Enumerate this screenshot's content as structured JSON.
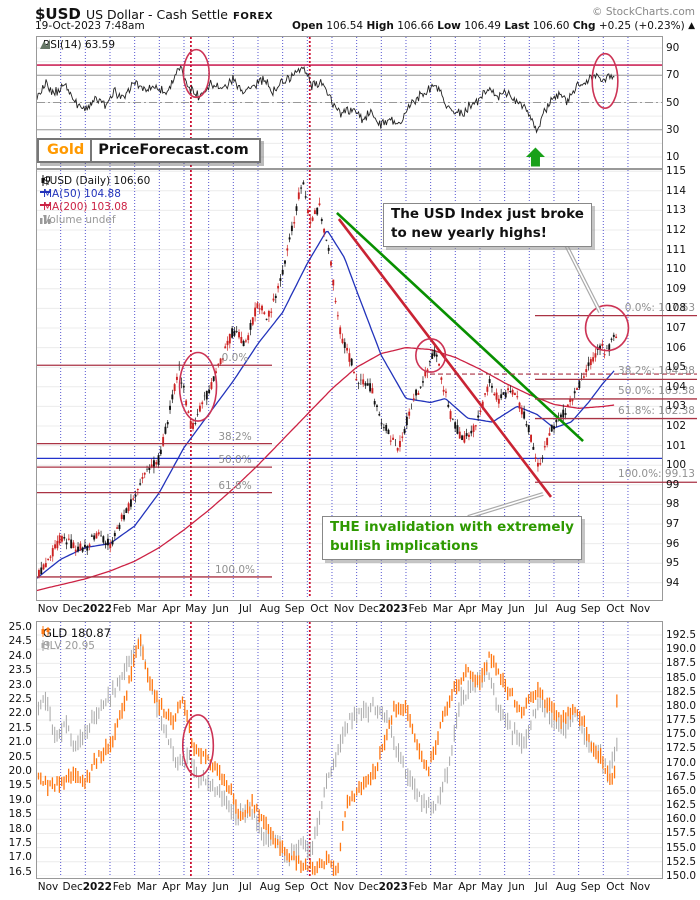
{
  "header": {
    "symbol": "$USD",
    "name": "US Dollar - Cash Settle",
    "exchange": "FOREX",
    "copyright": "© StockCharts.com",
    "datetime": "19-Oct-2023 7:48am",
    "quote": {
      "open_label": "Open",
      "open": "106.54",
      "high_label": "High",
      "high": "106.66",
      "low_label": "Low",
      "low": "106.49",
      "last_label": "Last",
      "last": "106.60",
      "chg_label": "Chg",
      "chg": "+0.25 (+0.23%)",
      "chg_arrow": "▲"
    }
  },
  "logo": {
    "part1": "Gold",
    "part2": "PriceForecast.com"
  },
  "rsi_panel": {
    "legend": "RSI(14) 63.59",
    "y_ticks": [
      "90",
      "70",
      "50",
      "30",
      "10"
    ]
  },
  "main_panel": {
    "legend_price": "$USD (Daily) 106.60",
    "legend_ma50": "MA(50) 104.88",
    "legend_ma200": "MA(200) 103.08",
    "legend_volume": "Volume undef",
    "y_ticks": [
      "115",
      "114",
      "113",
      "112",
      "111",
      "110",
      "109",
      "108",
      "107",
      "106",
      "105",
      "104",
      "103",
      "102",
      "101",
      "100",
      "99",
      "98",
      "97",
      "96",
      "95",
      "94"
    ]
  },
  "bottom_panel": {
    "legend_gld": "GLD 180.87",
    "legend_slv": "SLV 20.95",
    "left_ticks": [
      "25.0",
      "24.5",
      "24.0",
      "23.5",
      "23.0",
      "22.5",
      "22.0",
      "21.5",
      "21.0",
      "20.5",
      "20.0",
      "19.5",
      "19.0",
      "18.5",
      "18.0",
      "17.5",
      "17.0",
      "16.5"
    ],
    "right_ticks": [
      "192.5",
      "190.0",
      "187.5",
      "185.0",
      "182.5",
      "180.0",
      "177.5",
      "175.0",
      "172.5",
      "170.0",
      "167.5",
      "165.0",
      "162.5",
      "160.0",
      "157.5",
      "155.0",
      "152.5",
      "150.0"
    ]
  },
  "x_axis": {
    "labels": [
      "Nov",
      "Dec",
      "2022",
      "Feb",
      "Mar",
      "Apr",
      "May",
      "Jun",
      "Jul",
      "Aug",
      "Sep",
      "Oct",
      "Nov",
      "Dec",
      "2023",
      "Feb",
      "Mar",
      "Apr",
      "May",
      "Jun",
      "Jul",
      "Aug",
      "Sep",
      "Oct",
      "Nov"
    ]
  },
  "annotations": {
    "box1_line1": "The USD Index just broke",
    "box1_line2": "to new yearly highs!",
    "box2_line1": "THE invalidation with extremely",
    "box2_line2": "bullish implications"
  },
  "colors": {
    "candle_up": "#111111",
    "candle_down": "#cc2222",
    "ma50": "#2233bb",
    "ma200": "#cc2244",
    "rsi_line": "#222222",
    "rsi_overbought": "#c4003c",
    "gld": "#ff7711",
    "slv": "#a8a8a8",
    "fib": "#aa3344",
    "trend_green": "#089000",
    "trend_red": "#c92333",
    "grid_blue": "#4444cc",
    "grid_gray": "#ececec",
    "hline_gray": "#999999",
    "vline_red": "#cc1133",
    "blue_hline": "#2233cc",
    "ellipse": "#cc3355",
    "arrow_green": "#18a018",
    "annotation_green": "#2e9900",
    "logo_orange": "#ff9900"
  },
  "chart_data": {
    "type": "candlestick+line",
    "x_unit": "months since Nov-2021",
    "panels": [
      "RSI(14)",
      "$USD daily with MA(50), MA(200)",
      "GLD and SLV overlay"
    ],
    "rsi_hlines": {
      "red_line": 77.5,
      "solid": [
        70,
        30
      ],
      "dashdot": 50
    },
    "rsi_anchors": [
      [
        0,
        52
      ],
      [
        0.4,
        63
      ],
      [
        0.8,
        57
      ],
      [
        1.2,
        64
      ],
      [
        1.6,
        50
      ],
      [
        2,
        44
      ],
      [
        2.4,
        54
      ],
      [
        2.8,
        48
      ],
      [
        3.2,
        58
      ],
      [
        3.6,
        52
      ],
      [
        4,
        66
      ],
      [
        4.4,
        58
      ],
      [
        4.8,
        62
      ],
      [
        5.3,
        57
      ],
      [
        5.8,
        76
      ],
      [
        6.2,
        62
      ],
      [
        6.6,
        55
      ],
      [
        7.1,
        64
      ],
      [
        7.6,
        60
      ],
      [
        8,
        68
      ],
      [
        8.4,
        58
      ],
      [
        8.8,
        62
      ],
      [
        9.2,
        67
      ],
      [
        9.6,
        58
      ],
      [
        10,
        65
      ],
      [
        10.4,
        70
      ],
      [
        10.8,
        76
      ],
      [
        11.2,
        62
      ],
      [
        11.6,
        66
      ],
      [
        12,
        50
      ],
      [
        12.4,
        42
      ],
      [
        12.8,
        46
      ],
      [
        13.2,
        38
      ],
      [
        13.6,
        42
      ],
      [
        14,
        34
      ],
      [
        14.4,
        38
      ],
      [
        14.8,
        35
      ],
      [
        15.3,
        52
      ],
      [
        15.8,
        58
      ],
      [
        16.2,
        63
      ],
      [
        16.6,
        48
      ],
      [
        17,
        42
      ],
      [
        17.4,
        44
      ],
      [
        17.8,
        50
      ],
      [
        18.3,
        60
      ],
      [
        18.7,
        54
      ],
      [
        19.1,
        58
      ],
      [
        19.5,
        50
      ],
      [
        19.9,
        44
      ],
      [
        20.3,
        29
      ],
      [
        20.7,
        46
      ],
      [
        21.1,
        56
      ],
      [
        21.5,
        52
      ],
      [
        22,
        62
      ],
      [
        22.4,
        66
      ],
      [
        22.8,
        71
      ],
      [
        23.1,
        67
      ],
      [
        23.3,
        72
      ],
      [
        23.5,
        63.6
      ]
    ],
    "usd_anchors": [
      [
        0,
        94.3
      ],
      [
        0.5,
        95.1
      ],
      [
        1,
        96.3
      ],
      [
        1.5,
        95.9
      ],
      [
        2,
        95.7
      ],
      [
        2.5,
        96.6
      ],
      [
        3,
        95.9
      ],
      [
        3.5,
        97.3
      ],
      [
        4,
        98.4
      ],
      [
        4.5,
        99.8
      ],
      [
        5,
        100.3
      ],
      [
        5.8,
        105.0
      ],
      [
        6.3,
        101.9
      ],
      [
        7,
        103.8
      ],
      [
        7.5,
        105.3
      ],
      [
        8,
        106.9
      ],
      [
        8.5,
        106.2
      ],
      [
        9,
        108.3
      ],
      [
        9.4,
        107.5
      ],
      [
        10,
        109.8
      ],
      [
        10.8,
        114.6
      ],
      [
        11.1,
        112.5
      ],
      [
        11.5,
        113.2
      ],
      [
        11.9,
        110.8
      ],
      [
        12.3,
        106.9
      ],
      [
        13,
        104.5
      ],
      [
        13.6,
        103.9
      ],
      [
        14,
        102.2
      ],
      [
        14.7,
        100.9
      ],
      [
        15.3,
        103.3
      ],
      [
        16,
        105.3
      ],
      [
        16.2,
        105.8
      ],
      [
        16.8,
        102.6
      ],
      [
        17.3,
        101.3
      ],
      [
        17.8,
        101.9
      ],
      [
        18.4,
        104.2
      ],
      [
        18.8,
        103.3
      ],
      [
        19.3,
        103.9
      ],
      [
        19.9,
        102.2
      ],
      [
        20.4,
        99.9
      ],
      [
        20.9,
        101.9
      ],
      [
        21.5,
        102.8
      ],
      [
        22,
        104.1
      ],
      [
        22.5,
        105.3
      ],
      [
        22.9,
        106.1
      ],
      [
        23.1,
        105.7
      ],
      [
        23.5,
        106.6
      ]
    ],
    "ma50_anchors": [
      [
        0,
        94.2
      ],
      [
        1,
        95.2
      ],
      [
        2,
        95.8
      ],
      [
        3,
        96.0
      ],
      [
        4,
        96.9
      ],
      [
        5,
        98.6
      ],
      [
        6,
        100.9
      ],
      [
        7,
        102.6
      ],
      [
        8,
        104.3
      ],
      [
        9,
        106.2
      ],
      [
        10,
        107.8
      ],
      [
        11,
        110.3
      ],
      [
        11.8,
        112.0
      ],
      [
        12.5,
        110.6
      ],
      [
        13,
        108.9
      ],
      [
        14,
        105.6
      ],
      [
        15,
        103.4
      ],
      [
        16,
        103.2
      ],
      [
        16.6,
        103.4
      ],
      [
        17.5,
        102.4
      ],
      [
        18.5,
        102.2
      ],
      [
        19.5,
        103.0
      ],
      [
        20.3,
        102.6
      ],
      [
        21,
        101.9
      ],
      [
        21.7,
        102.2
      ],
      [
        22.4,
        103.2
      ],
      [
        23,
        104.2
      ],
      [
        23.5,
        104.9
      ]
    ],
    "ma200_anchors": [
      [
        0,
        93.6
      ],
      [
        1,
        93.9
      ],
      [
        2,
        94.2
      ],
      [
        3,
        94.6
      ],
      [
        4,
        95.1
      ],
      [
        5,
        95.8
      ],
      [
        6,
        96.7
      ],
      [
        7,
        97.7
      ],
      [
        8,
        98.8
      ],
      [
        9,
        100.0
      ],
      [
        10,
        101.3
      ],
      [
        11,
        102.6
      ],
      [
        12,
        103.9
      ],
      [
        13,
        105.0
      ],
      [
        14,
        105.7
      ],
      [
        15,
        106.0
      ],
      [
        16,
        105.9
      ],
      [
        17,
        105.5
      ],
      [
        18,
        104.9
      ],
      [
        19,
        104.2
      ],
      [
        20,
        103.6
      ],
      [
        21,
        103.1
      ],
      [
        22,
        102.9
      ],
      [
        23,
        103.0
      ],
      [
        23.5,
        103.08
      ]
    ],
    "gld_anchors": [
      [
        0,
        167.5
      ],
      [
        0.5,
        166
      ],
      [
        1,
        166.5
      ],
      [
        1.5,
        168
      ],
      [
        2,
        167
      ],
      [
        2.5,
        171
      ],
      [
        3,
        173
      ],
      [
        3.5,
        179
      ],
      [
        4.2,
        192.5
      ],
      [
        4.6,
        184
      ],
      [
        5,
        180
      ],
      [
        5.5,
        177
      ],
      [
        6,
        181
      ],
      [
        6.4,
        172
      ],
      [
        6.8,
        171
      ],
      [
        7.2,
        169.5
      ],
      [
        7.8,
        166
      ],
      [
        8.3,
        160
      ],
      [
        8.8,
        163
      ],
      [
        9.3,
        159
      ],
      [
        9.8,
        155.5
      ],
      [
        10.3,
        153.5
      ],
      [
        10.8,
        152
      ],
      [
        11.3,
        151
      ],
      [
        11.8,
        153
      ],
      [
        12.2,
        151
      ],
      [
        12.6,
        163
      ],
      [
        13.2,
        166
      ],
      [
        13.8,
        169
      ],
      [
        14.5,
        179.5
      ],
      [
        15,
        180
      ],
      [
        15.5,
        172
      ],
      [
        15.9,
        168.5
      ],
      [
        16.5,
        178
      ],
      [
        17,
        183
      ],
      [
        17.5,
        186
      ],
      [
        18,
        184
      ],
      [
        18.4,
        189
      ],
      [
        18.8,
        185
      ],
      [
        19.3,
        182
      ],
      [
        19.7,
        178.5
      ],
      [
        20.3,
        183
      ],
      [
        20.8,
        180
      ],
      [
        21.3,
        178
      ],
      [
        21.8,
        179.5
      ],
      [
        22.2,
        177
      ],
      [
        22.6,
        172
      ],
      [
        23,
        170
      ],
      [
        23.3,
        166.5
      ],
      [
        23.45,
        168
      ],
      [
        23.55,
        180.9
      ]
    ],
    "slv_anchors": [
      [
        0,
        21.8
      ],
      [
        0.4,
        22.6
      ],
      [
        0.8,
        21.0
      ],
      [
        1.2,
        21.6
      ],
      [
        1.6,
        20.8
      ],
      [
        2,
        21.4
      ],
      [
        2.5,
        22.0
      ],
      [
        3,
        22.6
      ],
      [
        3.5,
        23.3
      ],
      [
        4.2,
        24.5
      ],
      [
        4.7,
        22.8
      ],
      [
        5.2,
        21.5
      ],
      [
        5.7,
        20.2
      ],
      [
        6.2,
        20.5
      ],
      [
        6.7,
        19.7
      ],
      [
        7.2,
        19.5
      ],
      [
        7.7,
        19.0
      ],
      [
        8.2,
        18.4
      ],
      [
        8.7,
        18.8
      ],
      [
        9.2,
        17.8
      ],
      [
        9.7,
        17.6
      ],
      [
        10.2,
        16.9
      ],
      [
        10.7,
        17.5
      ],
      [
        11.2,
        17.2
      ],
      [
        11.7,
        19.3
      ],
      [
        12.2,
        20.6
      ],
      [
        12.7,
        21.8
      ],
      [
        13.2,
        22.0
      ],
      [
        13.7,
        22.3
      ],
      [
        14.2,
        21.8
      ],
      [
        14.7,
        20.6
      ],
      [
        15.2,
        19.6
      ],
      [
        15.7,
        19.0
      ],
      [
        16.2,
        18.7
      ],
      [
        16.7,
        20.0
      ],
      [
        17.2,
        22.4
      ],
      [
        17.7,
        23.0
      ],
      [
        18.3,
        23.5
      ],
      [
        18.8,
        22.0
      ],
      [
        19.3,
        21.4
      ],
      [
        19.8,
        20.9
      ],
      [
        20.4,
        22.5
      ],
      [
        20.9,
        21.8
      ],
      [
        21.4,
        21.5
      ],
      [
        21.9,
        21.9
      ],
      [
        22.4,
        21.0
      ],
      [
        22.9,
        20.5
      ],
      [
        23.2,
        19.9
      ],
      [
        23.45,
        20.4
      ],
      [
        23.55,
        21.0
      ]
    ],
    "fib_right": [
      {
        "label": "0.0%: 107.63",
        "price": 107.63
      },
      {
        "label": "38.2%: 104.38",
        "price": 104.38
      },
      {
        "label": "50.0%: 103.38",
        "price": 103.38
      },
      {
        "label": "61.8%: 102.38",
        "price": 102.38
      },
      {
        "label": "100.0%: 99.13",
        "price": 99.13
      }
    ],
    "fib_left": [
      {
        "label": "0.0%",
        "price": 105.1
      },
      {
        "label": "38.2%",
        "price": 101.1
      },
      {
        "label": "50.0%",
        "price": 99.9
      },
      {
        "label": "61.8%",
        "price": 98.6
      },
      {
        "label": "100.0%",
        "price": 94.3
      }
    ],
    "blue_hline_price": 100.35,
    "dashed_red_price": 104.65,
    "red_vlines_months": [
      6.28,
      11.1
    ],
    "trendlines": [
      {
        "name": "green_resistance",
        "m1": 12.2,
        "p1": 112.87,
        "m2": 22.18,
        "p2": 101.23
      },
      {
        "name": "red_steep",
        "m1": 12.28,
        "p1": 112.56,
        "m2": 20.88,
        "p2": 98.38
      }
    ],
    "ellipses_rsi": [
      {
        "cm": 6.5,
        "cv": 71.3,
        "rm": 0.52,
        "rv": 17.5
      },
      {
        "cm": 23.07,
        "cv": 65.8,
        "rm": 0.52,
        "rv": 20
      }
    ],
    "ellipses_main": [
      {
        "cm": 6.57,
        "cp": 104.0,
        "rm": 0.75,
        "rp": 1.75
      },
      {
        "cm": 16.0,
        "cp": 105.6,
        "rm": 0.6,
        "rp": 0.85
      },
      {
        "cm": 23.15,
        "cp": 107.0,
        "rm": 0.87,
        "rp": 1.15
      }
    ],
    "ellipse_bottom": {
      "cm": 6.57,
      "cg": 173.0,
      "rm": 0.62,
      "rg": 5.4
    },
    "green_arrow": {
      "month": 20.25,
      "rsi_tip": 17
    }
  }
}
